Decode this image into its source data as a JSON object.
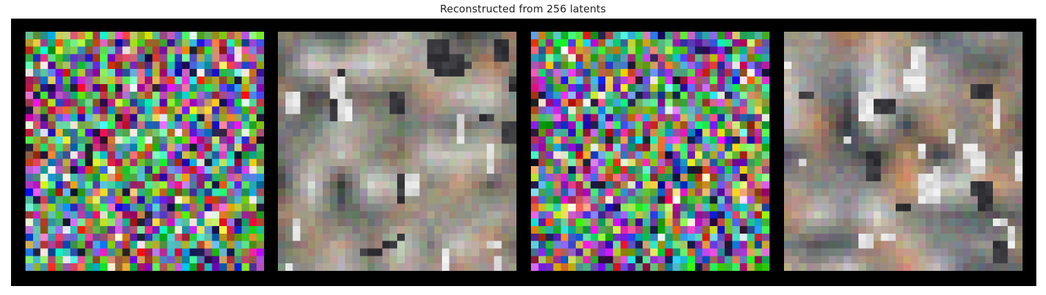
{
  "figure": {
    "title": "Reconstructed from 256 latents"
  },
  "panels": [
    {
      "kind": "noise",
      "seed": 1
    },
    {
      "kind": "blurry-reconstruction",
      "seed": 7,
      "palette": [
        "#8c8a7f",
        "#a09a8c",
        "#7d8a7b",
        "#b7a596",
        "#6d7474",
        "#c9c9c4",
        "#9a7f6b",
        "#b58464",
        "#5c6660",
        "#d8d6d2",
        "#3d3f3c"
      ]
    },
    {
      "kind": "noise",
      "seed": 3
    },
    {
      "kind": "blurry-reconstruction",
      "seed": 11,
      "palette": [
        "#8e8d8c",
        "#a7a29b",
        "#7b8480",
        "#9d8f80",
        "#6b6c6e",
        "#c7c5c2",
        "#b38867",
        "#c98e60",
        "#53595e",
        "#e4e3e1",
        "#2f3236"
      ]
    }
  ],
  "colors": {
    "background": "#ffffff",
    "frame": "#000000",
    "title_text": "#222222"
  }
}
